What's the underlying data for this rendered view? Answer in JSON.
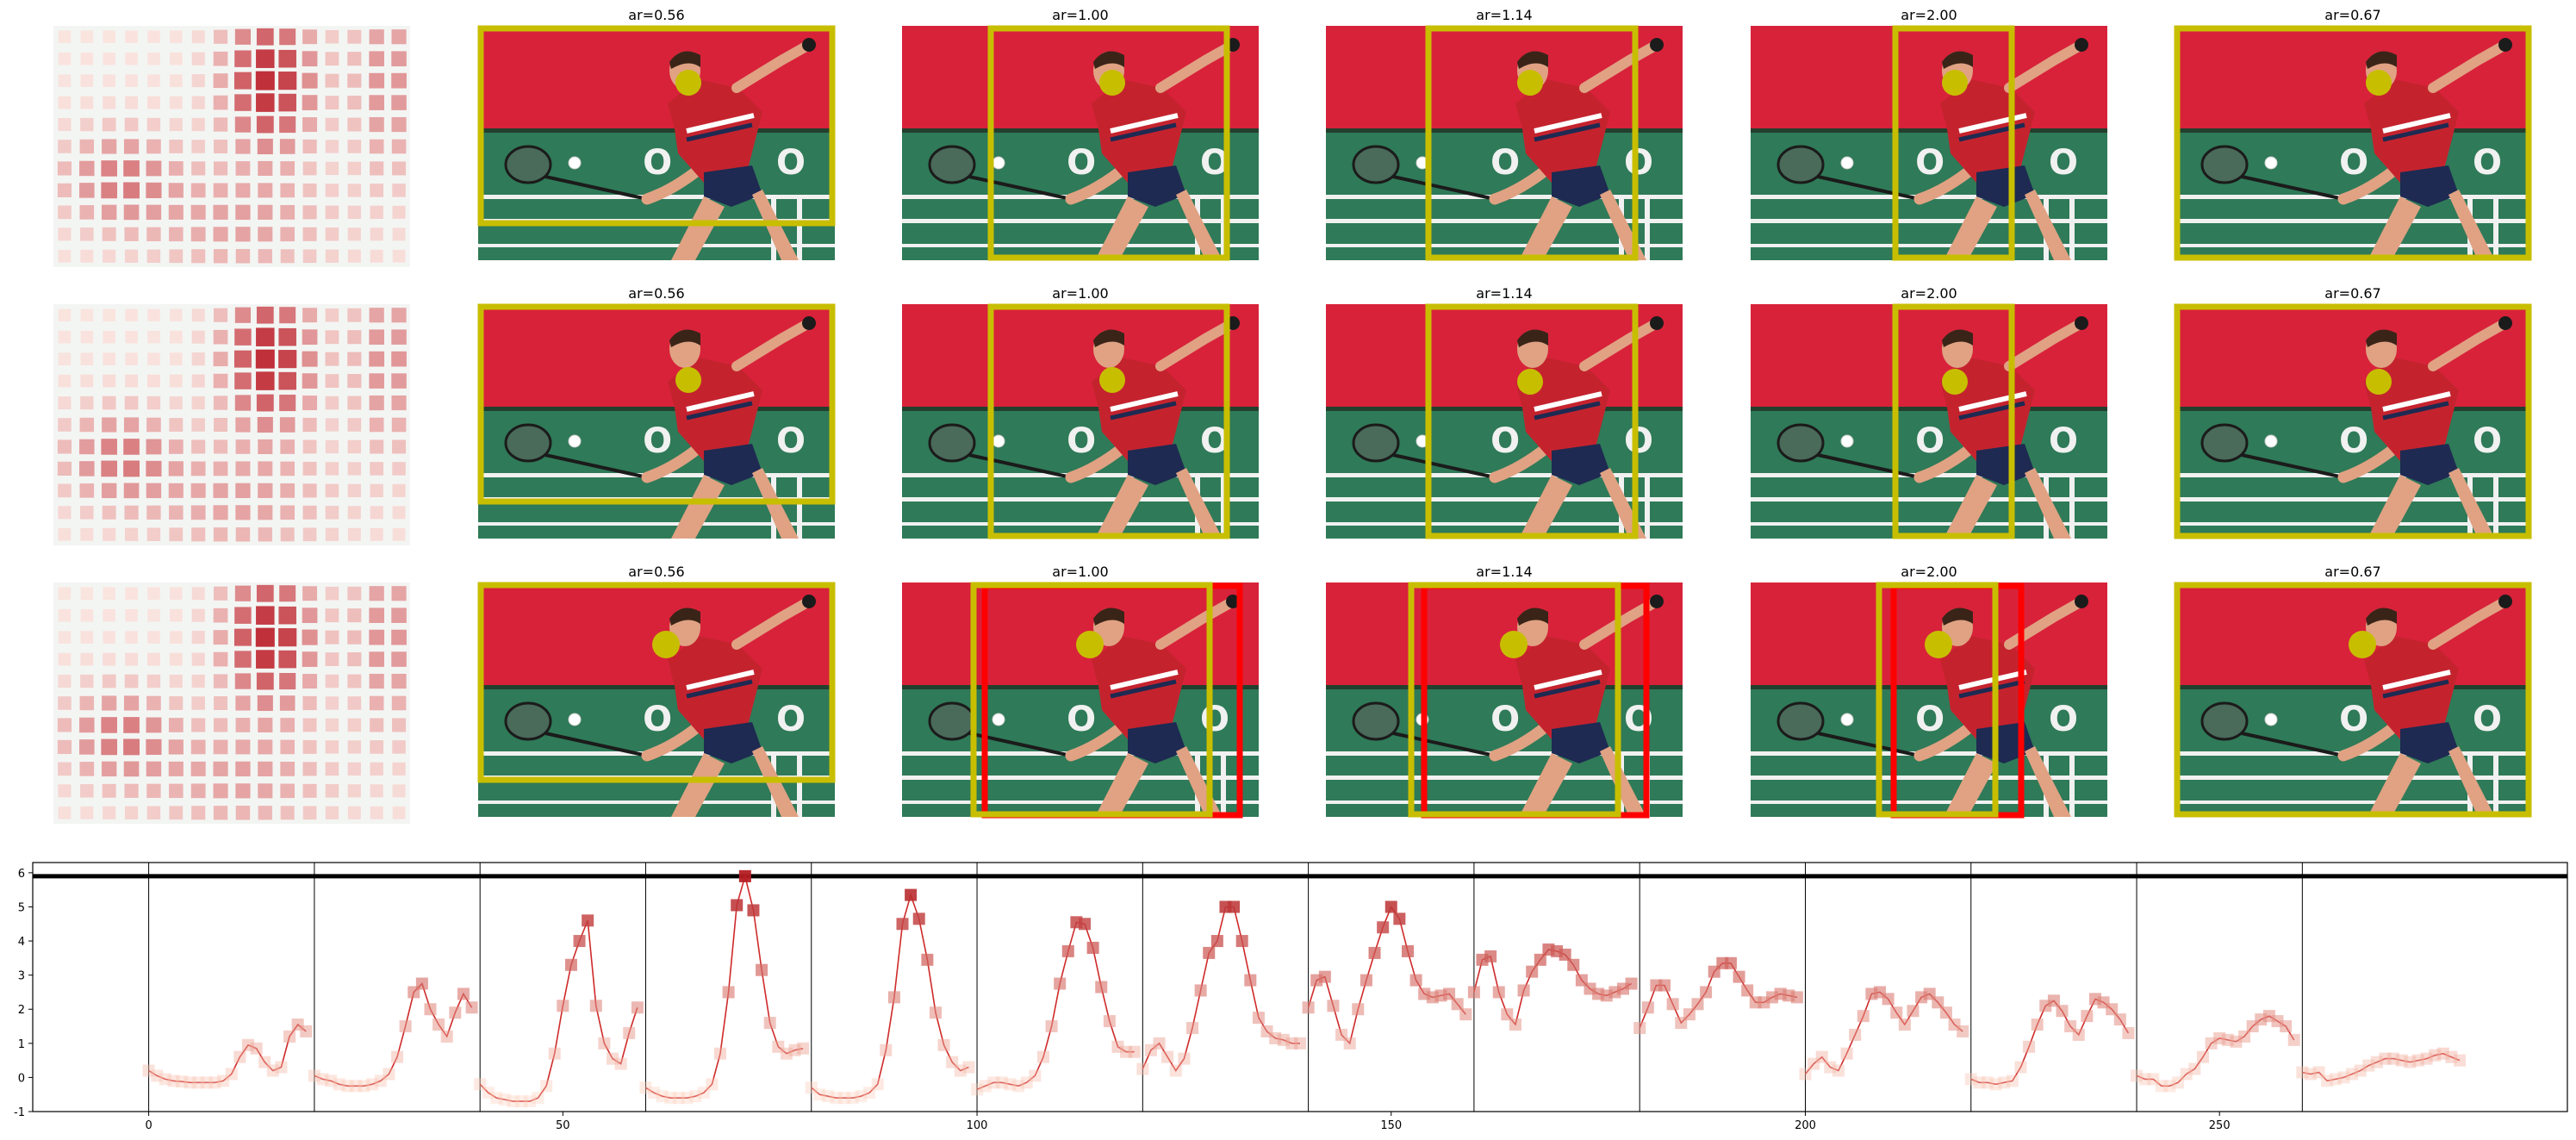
{
  "panel_titles": [
    "ar=0.56",
    "ar=1.00",
    "ar=1.14",
    "ar=2.00",
    "ar=0.67"
  ],
  "scene_palette": {
    "wall": "#d8223a",
    "court": "#2f7a58",
    "court_text": "O Z O",
    "crop_box": "#c8be00",
    "alt_box": "#ff0000",
    "focus_dot": "#c8be00",
    "shirt": "#c4232e",
    "shorts": "#1e2a52",
    "skin": "#e0a283"
  },
  "chart_data": [
    {
      "type": "heatmap",
      "description": "saliency grid thumbnails, one per row",
      "grid": [
        16,
        11
      ],
      "rows": 3,
      "colormap": [
        "#fcebe5",
        "#c0303a"
      ]
    },
    {
      "type": "line",
      "title": "",
      "xlabel": "",
      "ylabel": "",
      "xlim": [
        -14,
        292
      ],
      "ylim": [
        -1,
        6.3
      ],
      "xticks": [
        0,
        50,
        100,
        150,
        200,
        250
      ],
      "yticks": [
        -1,
        0,
        1,
        2,
        3,
        4,
        5,
        6
      ],
      "threshold": 5.9,
      "segment_boundaries": [
        0,
        20,
        40,
        60,
        80,
        100,
        120,
        140,
        160,
        180,
        200,
        220,
        240,
        260
      ],
      "line_color": "#cf2a2a",
      "marker": "square",
      "y": [
        0.2,
        0.05,
        -0.05,
        -0.1,
        -0.12,
        -0.15,
        -0.15,
        -0.15,
        -0.15,
        -0.1,
        0.1,
        0.6,
        0.95,
        0.85,
        0.45,
        0.2,
        0.3,
        1.2,
        1.55,
        1.35,
        0.05,
        -0.05,
        -0.1,
        -0.2,
        -0.25,
        -0.25,
        -0.25,
        -0.2,
        -0.1,
        0.1,
        0.6,
        1.5,
        2.5,
        2.75,
        2.0,
        1.55,
        1.2,
        1.9,
        2.45,
        2.05,
        -0.2,
        -0.45,
        -0.6,
        -0.65,
        -0.7,
        -0.7,
        -0.7,
        -0.6,
        -0.25,
        0.7,
        2.1,
        3.3,
        4.0,
        4.6,
        2.1,
        1.0,
        0.55,
        0.4,
        1.3,
        2.05,
        -0.3,
        -0.45,
        -0.55,
        -0.6,
        -0.6,
        -0.6,
        -0.55,
        -0.45,
        -0.2,
        0.7,
        2.5,
        5.05,
        5.9,
        4.9,
        3.15,
        1.6,
        0.9,
        0.7,
        0.8,
        0.85,
        -0.3,
        -0.5,
        -0.55,
        -0.6,
        -0.6,
        -0.6,
        -0.55,
        -0.45,
        -0.2,
        0.8,
        2.35,
        4.5,
        5.35,
        4.65,
        3.45,
        1.9,
        0.95,
        0.45,
        0.2,
        0.3,
        -0.35,
        -0.25,
        -0.15,
        -0.15,
        -0.2,
        -0.25,
        -0.15,
        0.05,
        0.6,
        1.5,
        2.75,
        3.7,
        4.55,
        4.5,
        3.8,
        2.65,
        1.65,
        0.9,
        0.75,
        0.75,
        0.25,
        0.8,
        1.0,
        0.6,
        0.2,
        0.55,
        1.45,
        2.55,
        3.65,
        4.0,
        5.0,
        5.0,
        4.0,
        2.85,
        1.75,
        1.35,
        1.15,
        1.1,
        1.0,
        1.0,
        2.05,
        2.85,
        2.95,
        2.1,
        1.25,
        1.0,
        2.0,
        2.85,
        3.65,
        4.4,
        5.0,
        4.65,
        3.7,
        2.85,
        2.45,
        2.35,
        2.4,
        2.45,
        2.15,
        1.85,
        2.5,
        3.45,
        3.55,
        2.5,
        1.85,
        1.55,
        2.55,
        3.1,
        3.45,
        3.75,
        3.7,
        3.6,
        3.3,
        2.85,
        2.6,
        2.45,
        2.4,
        2.5,
        2.6,
        2.75,
        1.45,
        2.05,
        2.7,
        2.7,
        2.15,
        1.6,
        1.85,
        2.15,
        2.5,
        3.1,
        3.35,
        3.35,
        2.95,
        2.55,
        2.2,
        2.2,
        2.35,
        2.45,
        2.4,
        2.35,
        0.1,
        0.4,
        0.6,
        0.3,
        0.2,
        0.7,
        1.25,
        1.8,
        2.45,
        2.5,
        2.3,
        1.9,
        1.55,
        1.95,
        2.35,
        2.45,
        2.2,
        1.9,
        1.55,
        1.35,
        -0.05,
        -0.15,
        -0.15,
        -0.2,
        -0.15,
        -0.1,
        0.3,
        0.9,
        1.55,
        2.1,
        2.25,
        1.95,
        1.5,
        1.25,
        1.8,
        2.3,
        2.2,
        2.0,
        1.7,
        1.3,
        0.05,
        -0.05,
        -0.05,
        -0.25,
        -0.25,
        -0.15,
        0.1,
        0.25,
        0.6,
        1.0,
        1.15,
        1.1,
        1.05,
        1.2,
        1.5,
        1.7,
        1.8,
        1.65,
        1.5,
        1.1,
        0.15,
        0.1,
        0.15,
        -0.1,
        -0.05,
        0.0,
        0.1,
        0.2,
        0.35,
        0.45,
        0.55,
        0.55,
        0.5,
        0.45,
        0.5,
        0.55,
        0.65,
        0.7,
        0.6,
        0.5
      ]
    }
  ]
}
